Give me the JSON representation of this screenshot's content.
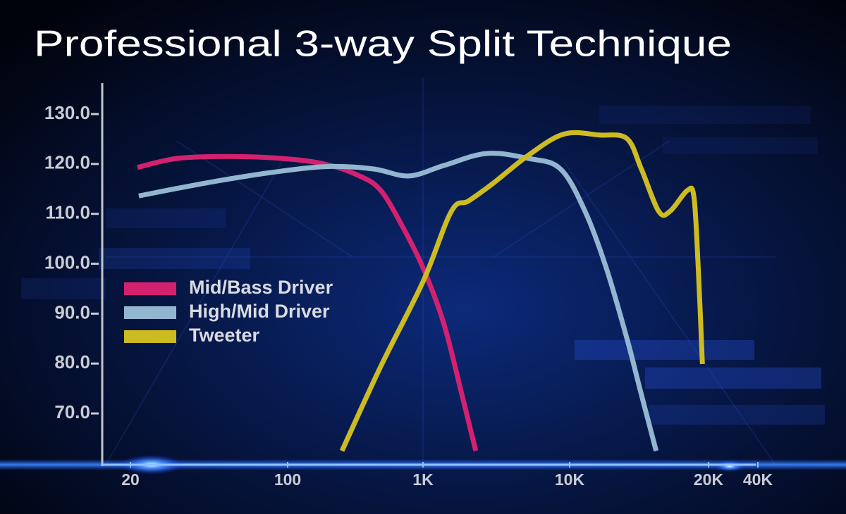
{
  "chart_data": {
    "type": "line",
    "title": "Professional 3-way Split Technique",
    "x_scale": "log",
    "xlim": [
      20,
      40000
    ],
    "xticks": [
      20,
      100,
      {
        "value": 1000,
        "label": "1K"
      },
      {
        "value": 10000,
        "label": "10K"
      },
      {
        "value": 20000,
        "label": "20K"
      },
      {
        "value": 40000,
        "label": "40K"
      }
    ],
    "ylim": [
      60,
      136
    ],
    "yticks": [
      {
        "value": 70,
        "label": "70.0"
      },
      {
        "value": 80,
        "label": "80.0"
      },
      {
        "value": 90,
        "label": "90.0"
      },
      {
        "value": 100,
        "label": "100.0"
      },
      {
        "value": 110,
        "label": "110.0"
      },
      {
        "value": 120,
        "label": "120.0"
      },
      {
        "value": 130,
        "label": "130.0"
      }
    ],
    "series": [
      {
        "name": "Mid/Bass Driver",
        "color": "#d3216f",
        "x": [
          21.5,
          32,
          53,
          95,
          187,
          340,
          487,
          698,
          1000,
          1390,
          1840,
          2290
        ],
        "values": [
          119.3,
          121.1,
          121.5,
          121.1,
          120,
          117.6,
          114.7,
          107.7,
          99.2,
          87.9,
          73.8,
          62.5
        ]
      },
      {
        "name": "High/Mid Driver",
        "color": "#92b6cf",
        "x": [
          21.8,
          46,
          95,
          210,
          432,
          787,
          1390,
          2710,
          5260,
          8660,
          10800,
          12000,
          13300,
          14300,
          15400
        ],
        "values": [
          113.6,
          116.4,
          118.6,
          119.5,
          119,
          117.6,
          119.7,
          122.1,
          121.1,
          119,
          110.5,
          99.2,
          85.1,
          73.8,
          62.5
        ]
      },
      {
        "name": "Tweeter",
        "color": "#cdbb22",
        "x": [
          252,
          487,
          1000,
          1560,
          2050,
          3030,
          5260,
          9150,
          11600,
          13300,
          14300,
          15600,
          16500,
          18000,
          18600,
          19000,
          19400
        ],
        "values": [
          62.5,
          79.4,
          96.4,
          110.5,
          112.6,
          116.2,
          121.8,
          126,
          125.8,
          125.1,
          119,
          110.5,
          110.5,
          114.7,
          113.3,
          99.2,
          79.9
        ]
      }
    ]
  }
}
